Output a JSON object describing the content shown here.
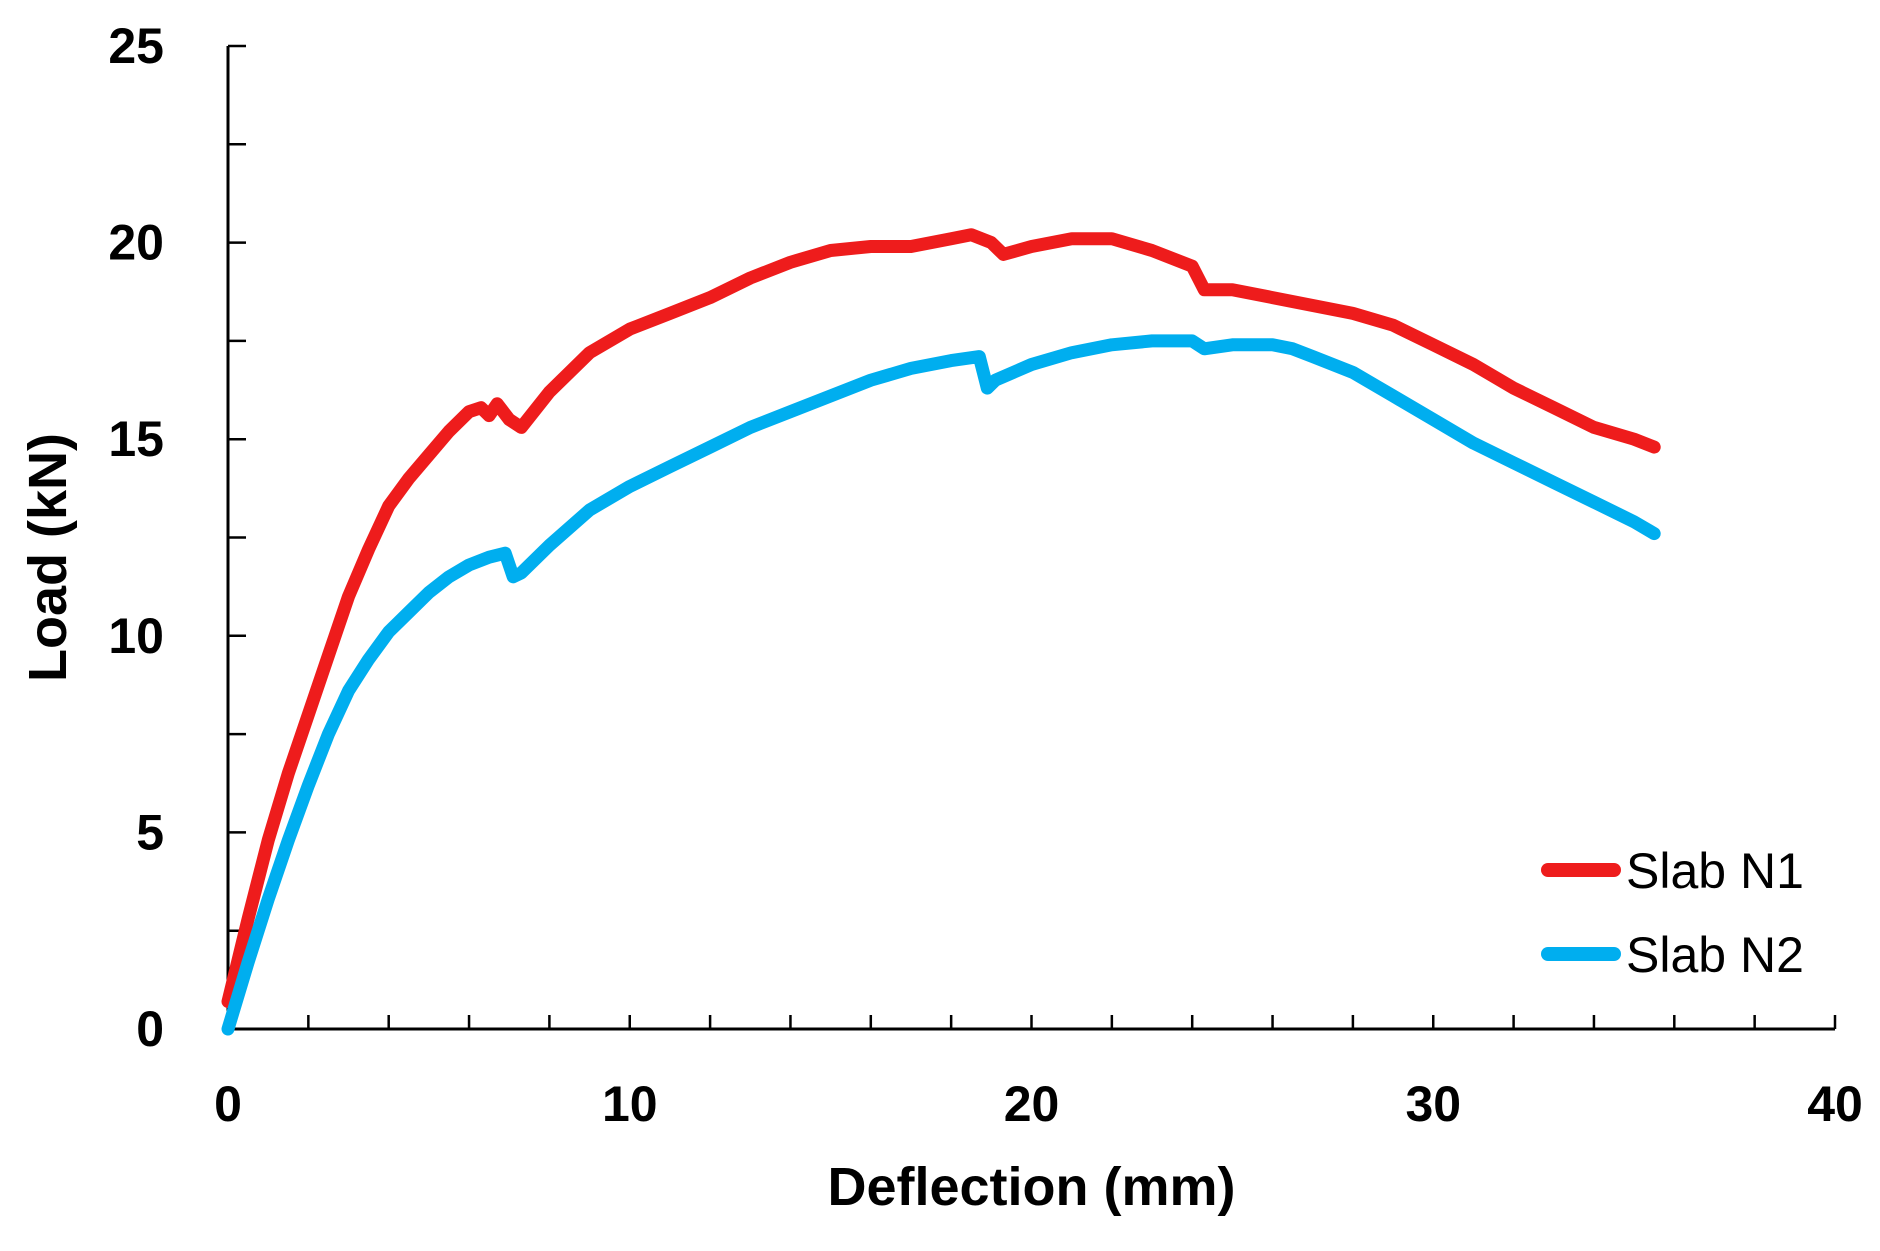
{
  "chart_data": {
    "type": "line",
    "title": "",
    "xlabel": "Deflection (mm)",
    "ylabel": "Load (kN)",
    "xlim": [
      0,
      40
    ],
    "ylim": [
      0,
      25
    ],
    "xticks": [
      0,
      10,
      20,
      30,
      40
    ],
    "yticks": [
      0,
      5,
      10,
      15,
      20,
      25
    ],
    "x_minor_step": 2,
    "y_minor_step": 2.5,
    "grid": false,
    "legend_position": "bottom-right",
    "series": [
      {
        "name": "Slab N1",
        "color": "#ee1c1c",
        "x": [
          0,
          0.5,
          1,
          1.5,
          2,
          2.5,
          3,
          3.5,
          4,
          4.5,
          5,
          5.5,
          6,
          6.3,
          6.5,
          6.7,
          7,
          7.3,
          8,
          9,
          10,
          11,
          12,
          13,
          14,
          15,
          16,
          17,
          18,
          18.5,
          19,
          19.3,
          20,
          21,
          22,
          23,
          24,
          24.3,
          25,
          26,
          27,
          28,
          29,
          30,
          31,
          32,
          33,
          34,
          35,
          35.5
        ],
        "y": [
          0.7,
          2.8,
          4.8,
          6.5,
          8.0,
          9.5,
          11.0,
          12.2,
          13.3,
          14.0,
          14.6,
          15.2,
          15.7,
          15.8,
          15.6,
          15.9,
          15.5,
          15.3,
          16.2,
          17.2,
          17.8,
          18.2,
          18.6,
          19.1,
          19.5,
          19.8,
          19.9,
          19.9,
          20.1,
          20.2,
          20.0,
          19.7,
          19.9,
          20.1,
          20.1,
          19.8,
          19.4,
          18.8,
          18.8,
          18.6,
          18.4,
          18.2,
          17.9,
          17.4,
          16.9,
          16.3,
          15.8,
          15.3,
          15.0,
          14.8
        ]
      },
      {
        "name": "Slab N2",
        "color": "#00aeef",
        "x": [
          0,
          0.5,
          1,
          1.5,
          2,
          2.5,
          3,
          3.5,
          4,
          4.5,
          5,
          5.5,
          6,
          6.5,
          6.9,
          7.1,
          7.3,
          8,
          9,
          10,
          11,
          12,
          13,
          14,
          15,
          16,
          17,
          18,
          18.7,
          18.9,
          19.1,
          20,
          21,
          22,
          23,
          24,
          24.3,
          25,
          26,
          26.5,
          27,
          28,
          29,
          30,
          31,
          32,
          33,
          34,
          35,
          35.5
        ],
        "y": [
          0,
          1.7,
          3.3,
          4.8,
          6.2,
          7.5,
          8.6,
          9.4,
          10.1,
          10.6,
          11.1,
          11.5,
          11.8,
          12.0,
          12.1,
          11.5,
          11.6,
          12.3,
          13.2,
          13.8,
          14.3,
          14.8,
          15.3,
          15.7,
          16.1,
          16.5,
          16.8,
          17.0,
          17.1,
          16.3,
          16.5,
          16.9,
          17.2,
          17.4,
          17.5,
          17.5,
          17.3,
          17.4,
          17.4,
          17.3,
          17.1,
          16.7,
          16.1,
          15.5,
          14.9,
          14.4,
          13.9,
          13.4,
          12.9,
          12.6
        ]
      }
    ]
  }
}
